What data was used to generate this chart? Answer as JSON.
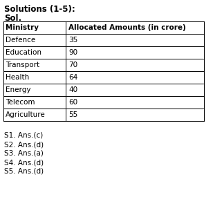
{
  "title_bold": "Solutions (1-5):",
  "subtitle_bold": "Sol.",
  "col1_header": "Ministry",
  "col2_header": "Allocated Amounts (in crore)",
  "rows": [
    [
      "Defence",
      "35"
    ],
    [
      "Education",
      "90"
    ],
    [
      "Transport",
      "70"
    ],
    [
      "Health",
      "64"
    ],
    [
      "Energy",
      "40"
    ],
    [
      "Telecom",
      "60"
    ],
    [
      "Agriculture",
      "55"
    ]
  ],
  "answers": [
    "S1. Ans.(c)",
    "S2. Ans.(d)",
    "S3. Ans.(a)",
    "S4. Ans.(d)",
    "S5. Ans.(d)"
  ],
  "bg_color": "#ffffff",
  "text_color": "#000000",
  "font_size": 7.5,
  "title_font_size": 8.5
}
